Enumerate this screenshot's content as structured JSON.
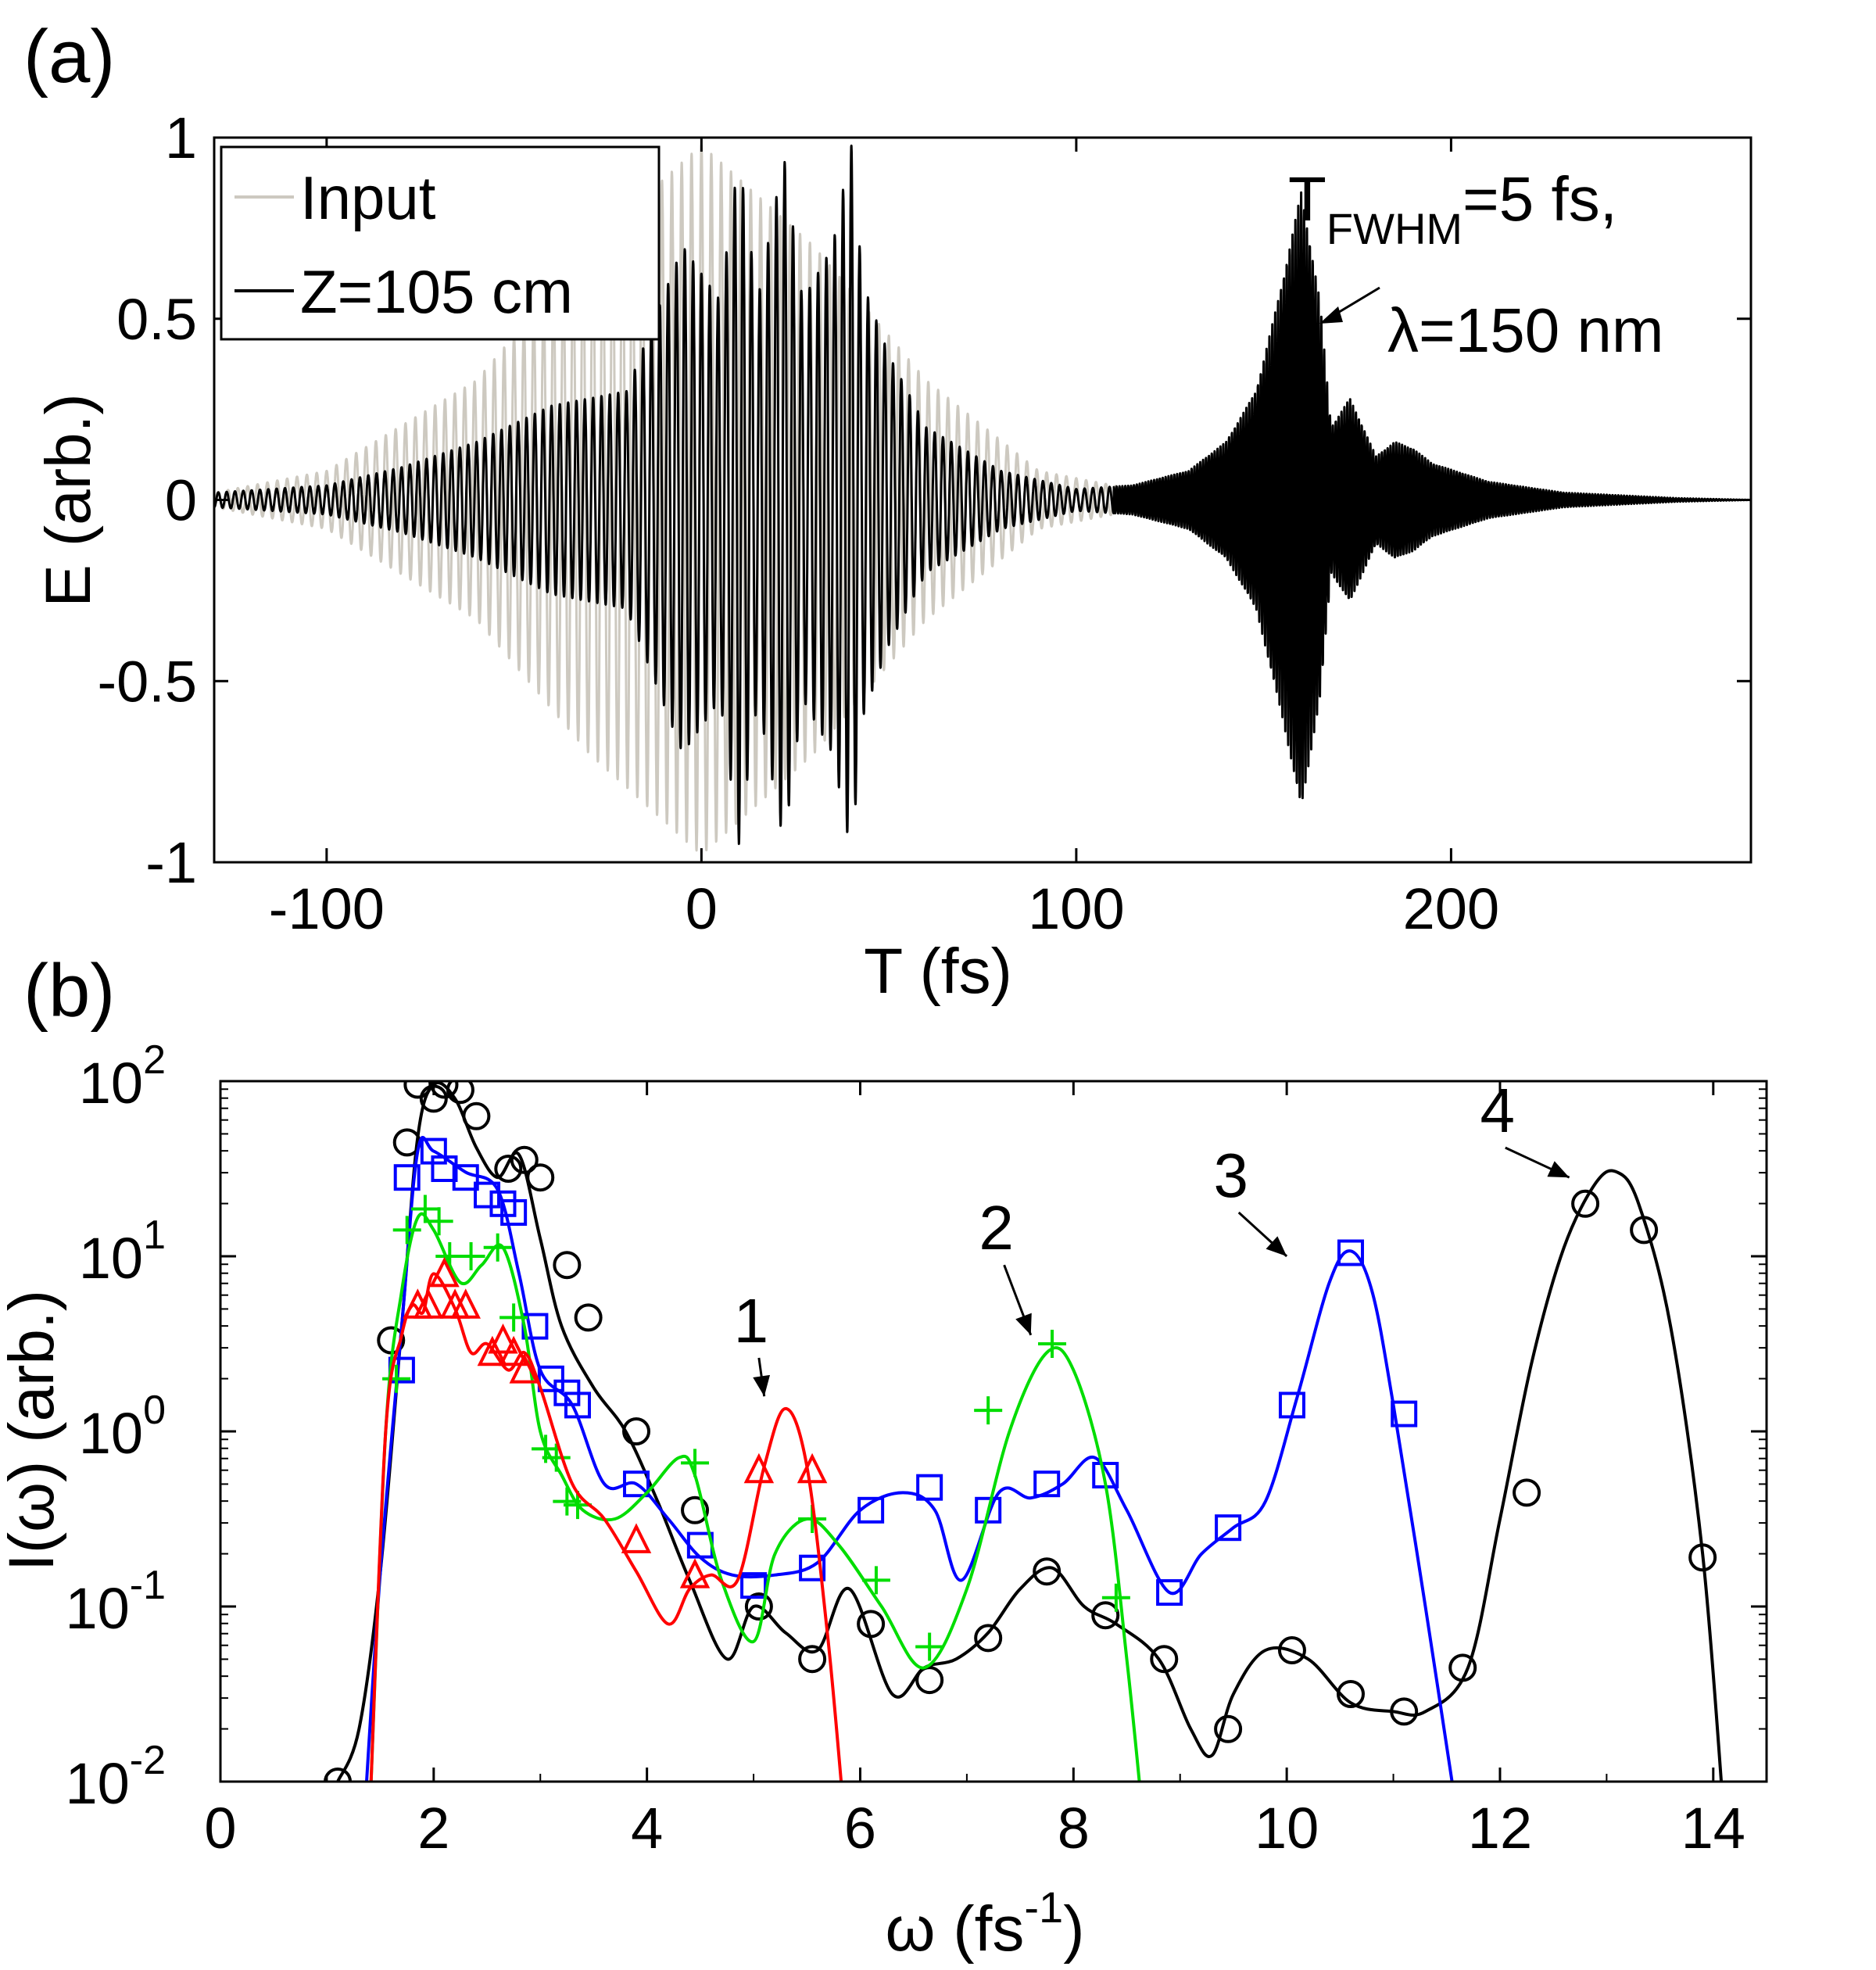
{
  "chart_data": [
    {
      "panel": "(a)",
      "type": "line",
      "xlabel": "T (fs)",
      "ylabel": "E (arb.)",
      "xlim": [
        -130,
        280
      ],
      "ylim": [
        -1,
        1
      ],
      "xticks": [
        -100,
        0,
        100,
        200
      ],
      "xtick_labels": [
        "-100",
        "0",
        "100",
        "200"
      ],
      "yticks": [
        -1,
        -0.5,
        0,
        0.5,
        1
      ],
      "ytick_labels": [
        "-1",
        "-0.5",
        "0",
        "0.5",
        "1"
      ],
      "legend": {
        "placement": "top-left",
        "entries": [
          {
            "label": "Input",
            "color": "#cdc9c0"
          },
          {
            "label": "Z=105 cm",
            "color": "#000000"
          }
        ]
      },
      "series": [
        {
          "name": "Input",
          "color": "#cdc9c0",
          "kind": "oscillating-field",
          "envelope_T": [
            -130,
            -100,
            -60,
            -30,
            0,
            30,
            60,
            90,
            120,
            150
          ],
          "envelope_E": [
            0.02,
            0.08,
            0.33,
            0.7,
            0.98,
            0.7,
            0.33,
            0.08,
            0.02,
            0.0
          ],
          "cycles_per_fs": 0.38
        },
        {
          "name": "Z=105 cm",
          "color": "#000000",
          "kind": "oscillating-field",
          "envelope_T": [
            -130,
            -100,
            -80,
            -60,
            -40,
            -20,
            -5,
            5,
            10,
            15,
            22,
            27,
            35,
            40,
            43,
            50,
            60,
            80,
            100,
            115,
            130,
            140,
            148,
            155,
            160,
            165,
            168,
            173,
            180,
            185,
            190,
            195,
            210,
            230,
            260,
            280
          ],
          "envelope_E": [
            0.02,
            0.04,
            0.09,
            0.16,
            0.26,
            0.3,
            0.7,
            0.55,
            0.95,
            0.55,
            0.95,
            0.55,
            0.7,
            0.98,
            0.6,
            0.4,
            0.2,
            0.08,
            0.03,
            0.04,
            0.08,
            0.16,
            0.3,
            0.6,
            0.85,
            0.55,
            0.2,
            0.28,
            0.12,
            0.16,
            0.14,
            0.1,
            0.05,
            0.02,
            0.005,
            0.0
          ],
          "cycles_per_fs": 0.45,
          "cycles_per_fs_late": 1.3
        }
      ],
      "annotations": [
        {
          "base": "T",
          "subscript": "FWHM",
          "rest": "=5 fs,",
          "line2": "λ=150 nm",
          "arrow_to_T": 163
        }
      ]
    },
    {
      "panel": "(b)",
      "type": "line",
      "yscale": "log",
      "xlabel_base": "ω (fs",
      "xlabel_sup": "-1",
      "xlabel_end": ")",
      "ylabel": "I(ω) (arb.)",
      "xlim": [
        0,
        14.5
      ],
      "ylim_log10": [
        -2,
        2
      ],
      "xticks": [
        0,
        2,
        4,
        6,
        8,
        10,
        12,
        14
      ],
      "xtick_labels": [
        "0",
        "2",
        "4",
        "6",
        "8",
        "10",
        "12",
        "14"
      ],
      "yticks_exp": [
        -2,
        -1,
        0,
        1,
        2
      ],
      "ytick_base": "10",
      "ytick_sups": [
        "-2",
        "-1",
        "0",
        "1",
        "2"
      ],
      "series": [
        {
          "name": "1",
          "color": "#ff0000",
          "marker": "triangle",
          "x": [
            1.4,
            1.55,
            1.7,
            1.8,
            1.9,
            2.0,
            2.2,
            2.35,
            2.5,
            2.7,
            2.85,
            3.0,
            3.3,
            3.6,
            3.9,
            4.2,
            4.4,
            4.6,
            4.85,
            5.1,
            5.3,
            5.5,
            5.7,
            5.85
          ],
          "y_log10": [
            -2.2,
            0.0,
            0.55,
            0.72,
            0.68,
            0.9,
            0.7,
            0.45,
            0.5,
            0.35,
            0.45,
            0.25,
            -0.3,
            -0.5,
            -0.8,
            -1.1,
            -0.9,
            -0.82,
            -0.85,
            -0.2,
            0.13,
            -0.2,
            -1.2,
            -2.2
          ],
          "marker_x": [
            1.85,
            1.95,
            2.1,
            2.2,
            2.3,
            2.55,
            2.65,
            2.75,
            2.85,
            3.9,
            4.45,
            5.05,
            5.55
          ],
          "marker_y_log10": [
            0.72,
            0.72,
            0.9,
            0.72,
            0.72,
            0.45,
            0.52,
            0.45,
            0.35,
            -0.62,
            -0.82,
            -0.22,
            -0.22
          ]
        },
        {
          "name": "2",
          "color": "#00dd00",
          "marker": "plus",
          "x": [
            1.4,
            1.55,
            1.7,
            1.85,
            2.0,
            2.25,
            2.45,
            2.65,
            2.85,
            3.0,
            3.2,
            3.4,
            3.7,
            4.0,
            4.3,
            4.45,
            4.7,
            5.0,
            5.2,
            5.5,
            5.8,
            6.2,
            6.6,
            7.0,
            7.4,
            7.75,
            8.0,
            8.3,
            8.5,
            8.65
          ],
          "y_log10": [
            -2.2,
            0.0,
            0.8,
            1.22,
            1.15,
            0.85,
            0.95,
            1.05,
            0.6,
            0.0,
            -0.25,
            -0.45,
            -0.5,
            -0.35,
            -0.15,
            -0.25,
            -0.85,
            -1.2,
            -0.7,
            -0.5,
            -0.65,
            -1.0,
            -1.35,
            -0.9,
            0.0,
            0.45,
            0.35,
            -0.3,
            -1.3,
            -2.2
          ],
          "marker_x": [
            1.65,
            1.75,
            1.92,
            2.05,
            2.15,
            2.35,
            2.6,
            2.75,
            3.05,
            3.15,
            3.25,
            3.35,
            4.45,
            5.55,
            6.15,
            6.65,
            7.2,
            7.8,
            8.4
          ],
          "marker_y_log10": [
            0.3,
            1.15,
            1.27,
            1.2,
            1.0,
            1.0,
            1.05,
            0.65,
            -0.1,
            -0.15,
            -0.4,
            -0.42,
            -0.18,
            -0.5,
            -0.85,
            -1.23,
            0.12,
            0.5,
            -0.95
          ]
        },
        {
          "name": "3",
          "color": "#0000ff",
          "marker": "square",
          "x": [
            1.35,
            1.5,
            1.7,
            1.85,
            2.0,
            2.3,
            2.6,
            2.8,
            3.0,
            3.3,
            3.6,
            3.9,
            4.2,
            4.5,
            4.8,
            5.2,
            5.6,
            6.0,
            6.4,
            6.7,
            6.95,
            7.3,
            7.6,
            7.9,
            8.2,
            8.5,
            8.9,
            9.2,
            9.5,
            9.8,
            10.1,
            10.4,
            10.6,
            10.8,
            11.0,
            11.3,
            11.6
          ],
          "y_log10": [
            -2.2,
            -0.8,
            0.6,
            1.6,
            1.6,
            1.48,
            1.38,
            0.9,
            0.35,
            0.15,
            -0.3,
            -0.3,
            -0.5,
            -0.72,
            -0.82,
            -0.82,
            -0.75,
            -0.45,
            -0.35,
            -0.45,
            -0.85,
            -0.35,
            -0.38,
            -0.3,
            -0.15,
            -0.45,
            -0.92,
            -0.7,
            -0.55,
            -0.4,
            0.2,
            0.85,
            1.03,
            0.8,
            0.15,
            -1.0,
            -2.2
          ],
          "marker_x": [
            1.7,
            1.75,
            2.0,
            2.1,
            2.3,
            2.5,
            2.65,
            2.75,
            2.95,
            3.1,
            3.25,
            3.35,
            3.9,
            4.5,
            5.0,
            5.55,
            6.1,
            6.65,
            7.2,
            7.75,
            8.3,
            8.9,
            9.45,
            10.05,
            10.6,
            11.1
          ],
          "marker_y_log10": [
            0.35,
            1.45,
            1.6,
            1.5,
            1.45,
            1.35,
            1.3,
            1.25,
            0.6,
            0.3,
            0.22,
            0.15,
            -0.3,
            -0.65,
            -0.88,
            -0.78,
            -0.45,
            -0.32,
            -0.45,
            -0.3,
            -0.25,
            -0.92,
            -0.55,
            0.15,
            1.02,
            0.1
          ]
        },
        {
          "name": "4",
          "color": "#000000",
          "marker": "circle",
          "x": [
            1.1,
            1.3,
            1.5,
            1.7,
            1.85,
            2.0,
            2.2,
            2.4,
            2.6,
            2.8,
            3.0,
            3.2,
            3.5,
            3.8,
            4.1,
            4.4,
            4.75,
            5.0,
            5.3,
            5.6,
            5.9,
            6.3,
            6.6,
            6.9,
            7.2,
            7.5,
            7.8,
            8.1,
            8.4,
            8.8,
            9.1,
            9.3,
            9.5,
            9.8,
            10.2,
            10.6,
            11.0,
            11.3,
            11.7,
            12.0,
            12.3,
            12.6,
            12.9,
            13.1,
            13.3,
            13.6,
            13.9,
            14.1
          ],
          "y_log10": [
            -2.0,
            -1.7,
            -0.8,
            0.6,
            1.68,
            1.98,
            1.9,
            1.62,
            1.45,
            1.58,
            1.1,
            0.6,
            0.25,
            0.0,
            -0.4,
            -0.85,
            -1.3,
            -1.0,
            -1.15,
            -1.25,
            -0.9,
            -1.5,
            -1.35,
            -1.3,
            -1.15,
            -0.9,
            -0.78,
            -1.0,
            -1.1,
            -1.3,
            -1.7,
            -1.85,
            -1.5,
            -1.25,
            -1.3,
            -1.55,
            -1.6,
            -1.6,
            -1.35,
            -0.5,
            0.4,
            1.05,
            1.42,
            1.48,
            1.3,
            0.6,
            -0.7,
            -2.2
          ],
          "marker_x": [
            1.1,
            1.6,
            1.75,
            1.85,
            2.0,
            2.1,
            2.25,
            2.4,
            2.7,
            2.85,
            3.0,
            3.25,
            3.45,
            3.9,
            4.45,
            5.05,
            5.55,
            6.1,
            6.65,
            7.2,
            7.75,
            8.3,
            8.85,
            9.45,
            10.05,
            10.6,
            11.1,
            11.65,
            12.25,
            12.8,
            13.35,
            13.9
          ],
          "marker_y_log10": [
            -2.0,
            0.52,
            1.65,
            1.98,
            1.9,
            1.98,
            1.95,
            1.8,
            1.5,
            1.55,
            1.45,
            0.95,
            0.65,
            0.0,
            -0.45,
            -1.0,
            -1.3,
            -1.1,
            -1.42,
            -1.18,
            -0.8,
            -1.05,
            -1.3,
            -1.7,
            -1.25,
            -1.5,
            -1.6,
            -1.35,
            -0.35,
            1.3,
            1.15,
            -0.72
          ]
        }
      ],
      "annotations": [
        {
          "text": "1",
          "arrow_from": [
            5.05,
            0.42
          ],
          "arrow_to": [
            5.1,
            0.2
          ]
        },
        {
          "text": "2",
          "arrow_from": [
            7.35,
            0.95
          ],
          "arrow_to": [
            7.6,
            0.55
          ]
        },
        {
          "text": "3",
          "arrow_from": [
            9.55,
            1.25
          ],
          "arrow_to": [
            10.0,
            1.0
          ]
        },
        {
          "text": "4",
          "arrow_from": [
            12.05,
            1.62
          ],
          "arrow_to": [
            12.65,
            1.45
          ]
        }
      ]
    }
  ]
}
